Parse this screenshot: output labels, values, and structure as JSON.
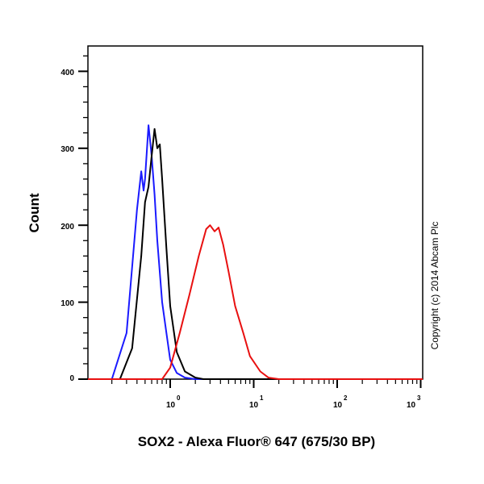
{
  "chart_data": {
    "type": "line",
    "title": "",
    "xlabel": "SOX2 - Alexa Fluor® 647 (675/30 BP)",
    "ylabel": "Count",
    "xscale": "log",
    "xlim": [
      0.1,
      1000
    ],
    "ylim": [
      0,
      430
    ],
    "x_ticks": [
      "10^0",
      "10^1",
      "10^2",
      "10^3"
    ],
    "y_ticks": [
      0,
      100,
      200,
      300,
      400
    ],
    "grid": false,
    "legend": null,
    "annotations": [
      "Copyright (c) 2014 Abcam Plc"
    ],
    "series": [
      {
        "name": "Blue histogram",
        "color": "#1a1aff",
        "x": [
          0.2,
          0.3,
          0.4,
          0.45,
          0.48,
          0.5,
          0.55,
          0.6,
          0.65,
          0.7,
          0.8,
          0.9,
          1.0,
          1.2,
          1.5,
          2.0
        ],
        "y": [
          0,
          60,
          220,
          270,
          245,
          260,
          330,
          290,
          240,
          180,
          100,
          60,
          25,
          8,
          2,
          0
        ]
      },
      {
        "name": "Black histogram",
        "color": "#000000",
        "x": [
          0.25,
          0.35,
          0.45,
          0.5,
          0.55,
          0.6,
          0.65,
          0.7,
          0.75,
          0.8,
          0.9,
          1.0,
          1.2,
          1.5,
          2.0,
          2.5
        ],
        "y": [
          0,
          40,
          160,
          230,
          250,
          290,
          325,
          300,
          305,
          260,
          170,
          95,
          35,
          10,
          2,
          0
        ]
      },
      {
        "name": "Red histogram (SOX2)",
        "color": "#e81010",
        "x": [
          0.8,
          1.0,
          1.3,
          1.7,
          2.2,
          2.7,
          3.0,
          3.4,
          3.8,
          4.3,
          5.0,
          6.0,
          7.5,
          9.0,
          12.0,
          15.0,
          20.0
        ],
        "y": [
          0,
          15,
          60,
          110,
          160,
          195,
          200,
          192,
          197,
          175,
          140,
          95,
          60,
          30,
          10,
          2,
          0
        ]
      }
    ]
  },
  "axes": {
    "y_tick_labels": [
      "400",
      "300",
      "200",
      "100",
      "0"
    ],
    "x_tick_bases": [
      "10",
      "10",
      "10",
      "10"
    ],
    "x_tick_exps": [
      "0",
      "1",
      "2",
      "3"
    ]
  },
  "labels": {
    "ylabel": "Count",
    "xlabel": "SOX2 - Alexa Fluor® 647 (675/30 BP)",
    "copyright": "Copyright (c) 2014 Abcam Plc"
  }
}
